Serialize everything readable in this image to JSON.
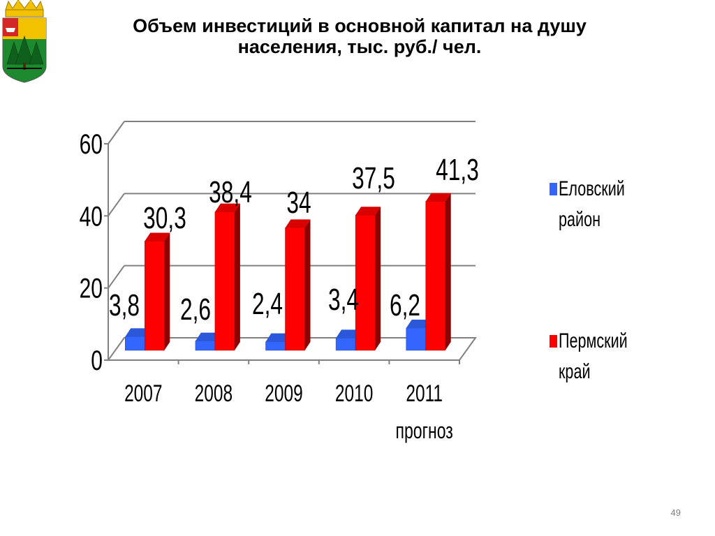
{
  "slide": {
    "title_line1": "Объем инвестиций в основной капитал на душу",
    "title_line2": "населения,  тыс. руб./ чел.",
    "page_number": "49"
  },
  "colors": {
    "eloovsky": "#3366ff",
    "perm": "#ff0000"
  },
  "chart_data": {
    "type": "bar",
    "categories": [
      "2007",
      "2008",
      "2009",
      "2010",
      "2011"
    ],
    "category_sublabels": [
      "",
      "",
      "",
      "",
      "прогноз"
    ],
    "series": [
      {
        "name": "Еловский район",
        "values": [
          3.8,
          2.6,
          2.4,
          3.4,
          6.2
        ],
        "labels": [
          "3,8",
          "2,6",
          "2,4",
          "3,4",
          "6,2"
        ]
      },
      {
        "name": "Пермский край",
        "values": [
          30.3,
          38.4,
          34,
          37.5,
          41.3
        ],
        "labels": [
          "30,3",
          "38,4",
          "34",
          "37,5",
          "41,3"
        ]
      }
    ],
    "yticks": [
      "0",
      "20",
      "40",
      "60"
    ],
    "ylim": [
      0,
      60
    ],
    "grid": true,
    "legend_position": "right",
    "style": "3d-clustered-column"
  }
}
